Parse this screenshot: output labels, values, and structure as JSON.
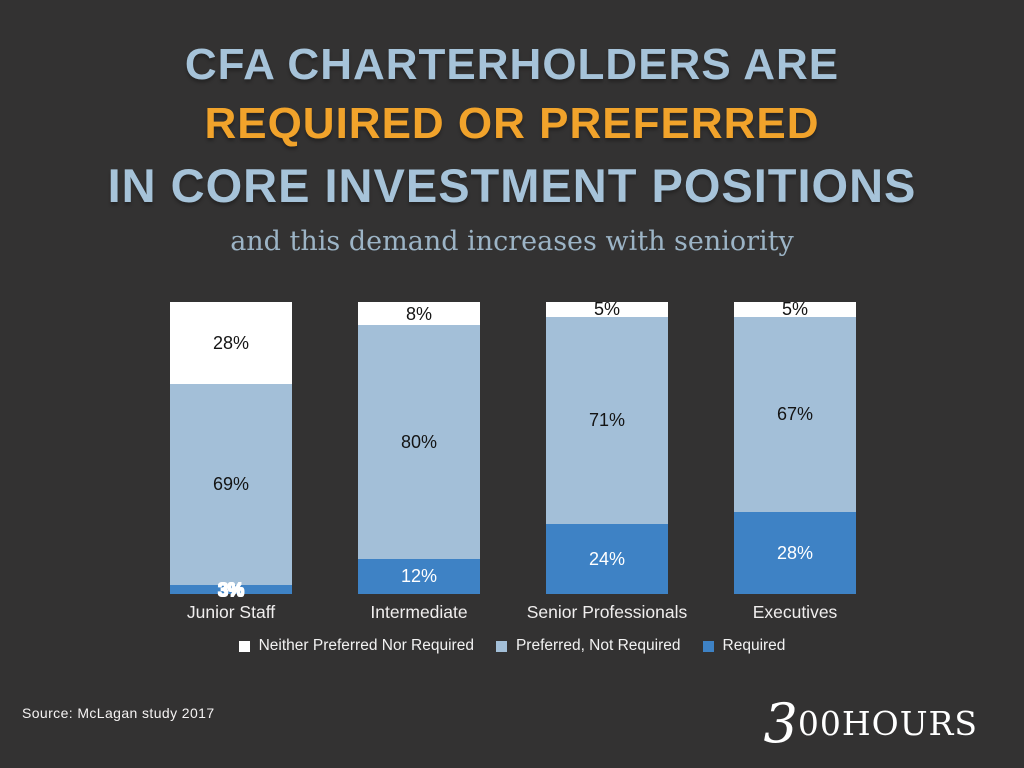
{
  "background_color": "#333232",
  "title": {
    "line1": "CFA CHARTERHOLDERS ARE",
    "line2": "REQUIRED OR PREFERRED",
    "line3": "IN CORE INVESTMENT POSITIONS",
    "line1_color": "#a6c3d9",
    "line2_color": "#f1a32b",
    "line3_color": "#a6c3d9",
    "subtitle": "and this demand increases with seniority",
    "subtitle_color": "#9cb4c6"
  },
  "chart_data": {
    "type": "bar",
    "stacked": true,
    "percent_scale": true,
    "ylim": [
      0,
      100
    ],
    "grid": false,
    "legend_position": "bottom",
    "value_suffix": "%",
    "categories": [
      "Junior Staff",
      "Intermediate",
      "Senior Professionals",
      "Executives"
    ],
    "series": [
      {
        "name": "Neither Preferred Nor Required",
        "color": "#ffffff",
        "label_color": "#141414",
        "values": [
          28,
          8,
          5,
          5
        ]
      },
      {
        "name": "Preferred, Not Required",
        "color": "#a3bfd8",
        "label_color": "#141414",
        "values": [
          69,
          80,
          71,
          67
        ]
      },
      {
        "name": "Required",
        "color": "#3e82c5",
        "label_color": "#ffffff",
        "halo_indices": [
          0
        ],
        "values": [
          3,
          12,
          24,
          28
        ]
      }
    ]
  },
  "footer": {
    "source": "Source: McLagan study 2017",
    "logo_3": "3",
    "logo_00": "00",
    "logo_hours": "HOURS"
  }
}
